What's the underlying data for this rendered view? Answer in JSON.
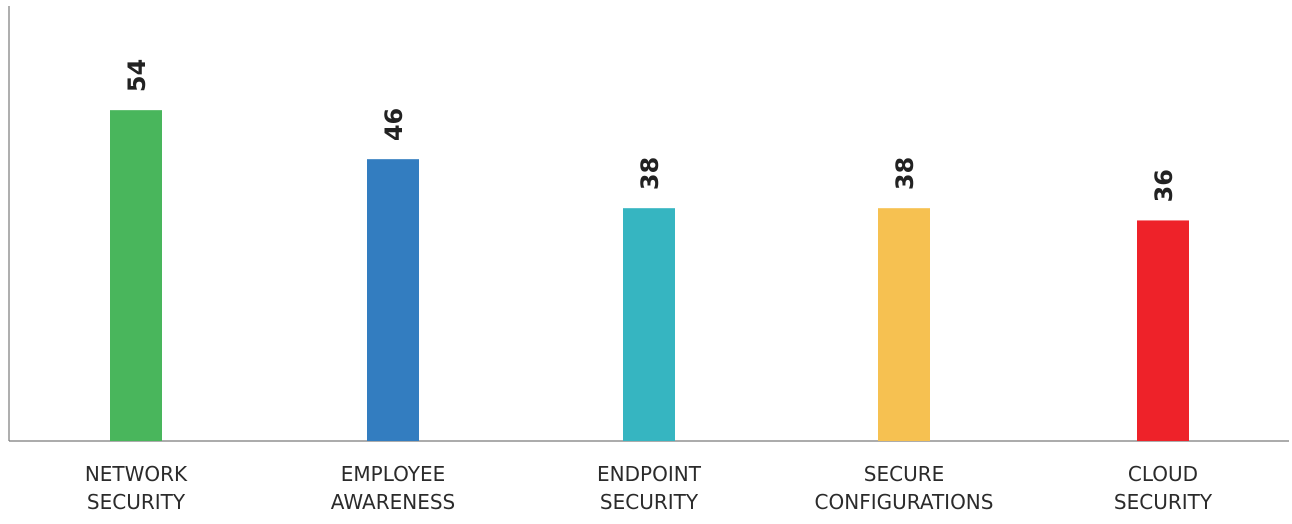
{
  "chart_data": {
    "type": "bar",
    "categories": [
      [
        "NETWORK",
        "SECURITY"
      ],
      [
        "EMPLOYEE",
        "AWARENESS"
      ],
      [
        "ENDPOINT",
        "SECURITY"
      ],
      [
        "SECURE",
        "CONFIGURATIONS"
      ],
      [
        "CLOUD",
        "SECURITY"
      ]
    ],
    "values": [
      54,
      46,
      38,
      38,
      36
    ],
    "colors": [
      "#49b65c",
      "#337dc0",
      "#36b5c1",
      "#f6c151",
      "#ee2229"
    ],
    "data_labels": [
      "54",
      "46",
      "38",
      "38",
      "36"
    ],
    "title": "",
    "xlabel": "",
    "ylabel": "",
    "ylim": [
      0,
      71
    ],
    "grid": false,
    "legend": "none"
  }
}
